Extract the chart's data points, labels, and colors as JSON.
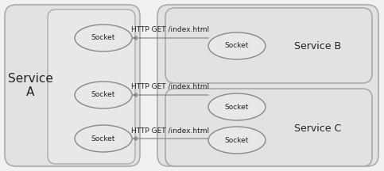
{
  "bg_color": "#f0f0f0",
  "box_color": "#e2e2e2",
  "box_edge_color": "#aaaaaa",
  "ellipse_color": "#e8e8e8",
  "ellipse_edge_color": "#888888",
  "arrow_color": "#888888",
  "text_color": "#222222",
  "socket_label": "Socket",
  "service_a_label": "Service\nA",
  "service_b_label": "Service B",
  "service_c_label": "Service C",
  "arrow1_label": "HTTP GET /index.html",
  "arrow2_label": "HTTP GET /index.html",
  "arrow3_label": "HTTP GET /index.html",
  "figw": 4.83,
  "figh": 2.16,
  "dpi": 100
}
